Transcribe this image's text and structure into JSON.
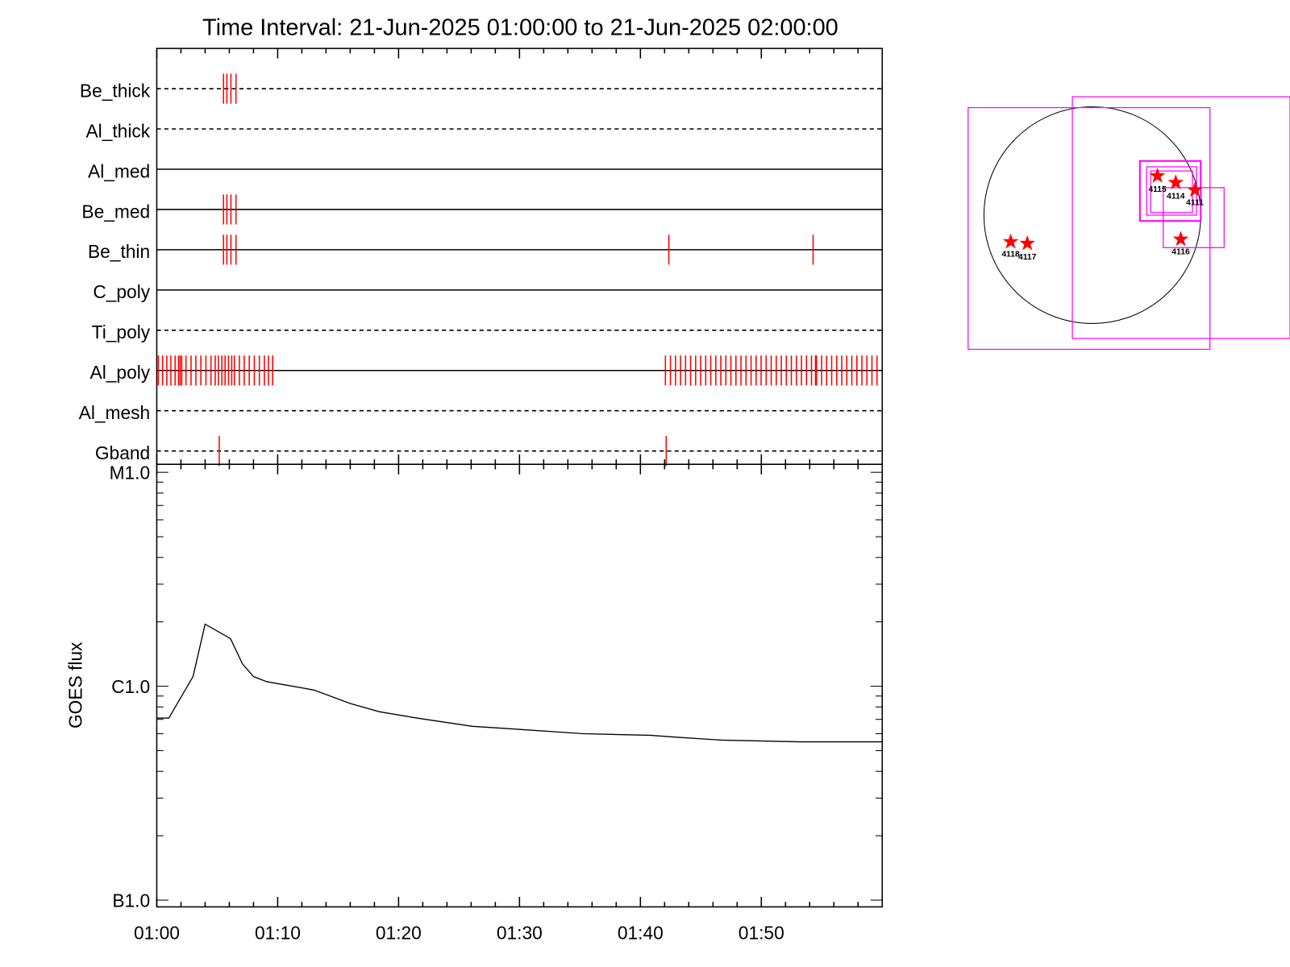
{
  "chart_data": [
    {
      "type": "timeline",
      "title": "Time Interval: 21-Jun-2025 01:00:00 to 21-Jun-2025 02:00:00",
      "xlim": [
        "01:00:00",
        "02:00:00"
      ],
      "color": "#ff0000",
      "rows": [
        {
          "name": "Be_thick",
          "style": "dashed",
          "events": [
            "01:05:31",
            "01:05:48",
            "01:06:08",
            "01:06:33"
          ]
        },
        {
          "name": "Al_thick",
          "style": "dashed",
          "events": []
        },
        {
          "name": "Al_med",
          "style": "solid",
          "events": []
        },
        {
          "name": "Be_med",
          "style": "solid",
          "events": [
            "01:05:31",
            "01:05:48",
            "01:06:08",
            "01:06:33"
          ]
        },
        {
          "name": "Be_thin",
          "style": "solid",
          "events": [
            "01:05:31",
            "01:05:48",
            "01:06:08",
            "01:06:33",
            "01:42:21",
            "01:54:17"
          ]
        },
        {
          "name": "C_poly",
          "style": "solid",
          "events": []
        },
        {
          "name": "Ti_poly",
          "style": "dashed",
          "events": []
        },
        {
          "name": "Al_poly",
          "style": "solid",
          "events": [
            "01:00:08",
            "01:00:29",
            "01:00:50",
            "01:01:10",
            "01:01:31",
            "01:01:48",
            "01:01:56",
            "01:02:04",
            "01:02:25",
            "01:02:50",
            "01:03:14",
            "01:03:39",
            "01:04:04",
            "01:04:29",
            "01:04:50",
            "01:05:06",
            "01:05:23",
            "01:05:39",
            "01:05:56",
            "01:06:12",
            "01:06:25",
            "01:06:50",
            "01:07:14",
            "01:07:39",
            "01:08:04",
            "01:08:29",
            "01:08:54",
            "01:09:14",
            "01:09:35",
            "01:42:04",
            "01:42:29",
            "01:42:54",
            "01:43:19",
            "01:43:44",
            "01:44:09",
            "01:44:34",
            "01:44:59",
            "01:45:24",
            "01:45:49",
            "01:46:14",
            "01:46:39",
            "01:47:04",
            "01:47:29",
            "01:47:54",
            "01:48:19",
            "01:48:44",
            "01:49:09",
            "01:49:34",
            "01:49:59",
            "01:50:24",
            "01:50:49",
            "01:51:14",
            "01:51:39",
            "01:52:04",
            "01:52:29",
            "01:52:54",
            "01:53:19",
            "01:53:44",
            "01:54:09",
            "01:54:29",
            "01:54:34",
            "01:54:59",
            "01:55:24",
            "01:55:49",
            "01:56:14",
            "01:56:39",
            "01:57:04",
            "01:57:29",
            "01:57:54",
            "01:58:19",
            "01:58:44",
            "01:59:09",
            "01:59:34"
          ]
        },
        {
          "name": "Al_mesh",
          "style": "dashed",
          "events": []
        },
        {
          "name": "Gband",
          "style": "dashed",
          "events": [
            "01:05:10",
            "01:42:08"
          ]
        }
      ]
    },
    {
      "type": "line",
      "ylabel": "GOES flux",
      "log_y": true,
      "color": "#000000",
      "xlim": [
        "01:00:00",
        "02:00:00"
      ],
      "xticks": [
        "01:00",
        "01:10",
        "01:20",
        "01:30",
        "01:40",
        "01:50"
      ],
      "xminorticks": [
        "01:02",
        "01:04",
        "01:06",
        "01:08",
        "01:12",
        "01:14",
        "01:16",
        "01:18",
        "01:22",
        "01:24",
        "01:26",
        "01:28",
        "01:32",
        "01:34",
        "01:36",
        "01:38",
        "01:42",
        "01:44",
        "01:46",
        "01:48",
        "01:52",
        "01:54",
        "01:56",
        "01:58"
      ],
      "ylim": [
        9.3e-08,
        1.09e-05
      ],
      "yticks": [
        {
          "value": 1e-07,
          "label": "B1.0"
        },
        {
          "value": 1e-06,
          "label": "C1.0"
        },
        {
          "value": 1e-05,
          "label": "M1.0"
        }
      ],
      "yminorticks": [
        2e-07,
        3e-07,
        4e-07,
        5e-07,
        6e-07,
        7e-07,
        8e-07,
        9e-07,
        2e-06,
        3e-06,
        4e-06,
        5e-06,
        6e-06,
        7e-06,
        8e-06,
        9e-06
      ],
      "x": [
        "01:00:00",
        "01:01:00",
        "01:03:00",
        "01:04:00",
        "01:06:06",
        "01:07:06",
        "01:08:00",
        "01:09:06",
        "01:13:00",
        "01:16:00",
        "01:18:24",
        "01:21:30",
        "01:26:06",
        "01:29:48",
        "01:35:18",
        "01:40:48",
        "01:42:36",
        "01:46:42",
        "01:53:12",
        "02:00:00"
      ],
      "values": [
        7.1e-07,
        7.1e-07,
        1.11e-06,
        1.95e-06,
        1.67e-06,
        1.27e-06,
        1.11e-06,
        1.05e-06,
        9.6e-07,
        8.3e-07,
        7.6e-07,
        7.1e-07,
        6.5e-07,
        6.3e-07,
        6e-07,
        5.9e-07,
        5.8e-07,
        5.6e-07,
        5.5e-07,
        5.5e-07
      ]
    }
  ],
  "map": {
    "regions": [
      "4115",
      "4114",
      "4111",
      "4116",
      "4118",
      "4117"
    ]
  }
}
